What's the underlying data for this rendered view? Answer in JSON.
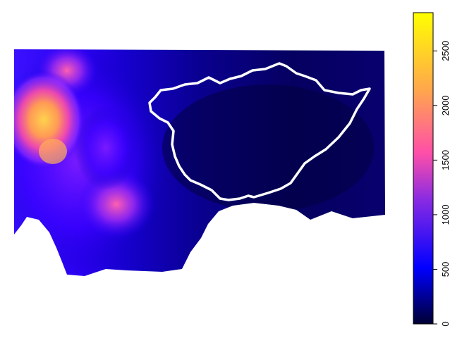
{
  "map": {
    "type": "raster-elevation",
    "color_ramp": [
      "#000033",
      "#0000ff",
      "#8a2be2",
      "#ff4fa8",
      "#ffa64d",
      "#ffff00"
    ],
    "value_range": [
      0,
      2850
    ],
    "boundary_color": "#ffffff"
  },
  "legend": {
    "ticks": [
      {
        "value": 0,
        "label": "0"
      },
      {
        "value": 500,
        "label": "500"
      },
      {
        "value": 1000,
        "label": "1000"
      },
      {
        "value": 1500,
        "label": "1500"
      },
      {
        "value": 2000,
        "label": "2000"
      },
      {
        "value": 2500,
        "label": "2500"
      }
    ]
  }
}
